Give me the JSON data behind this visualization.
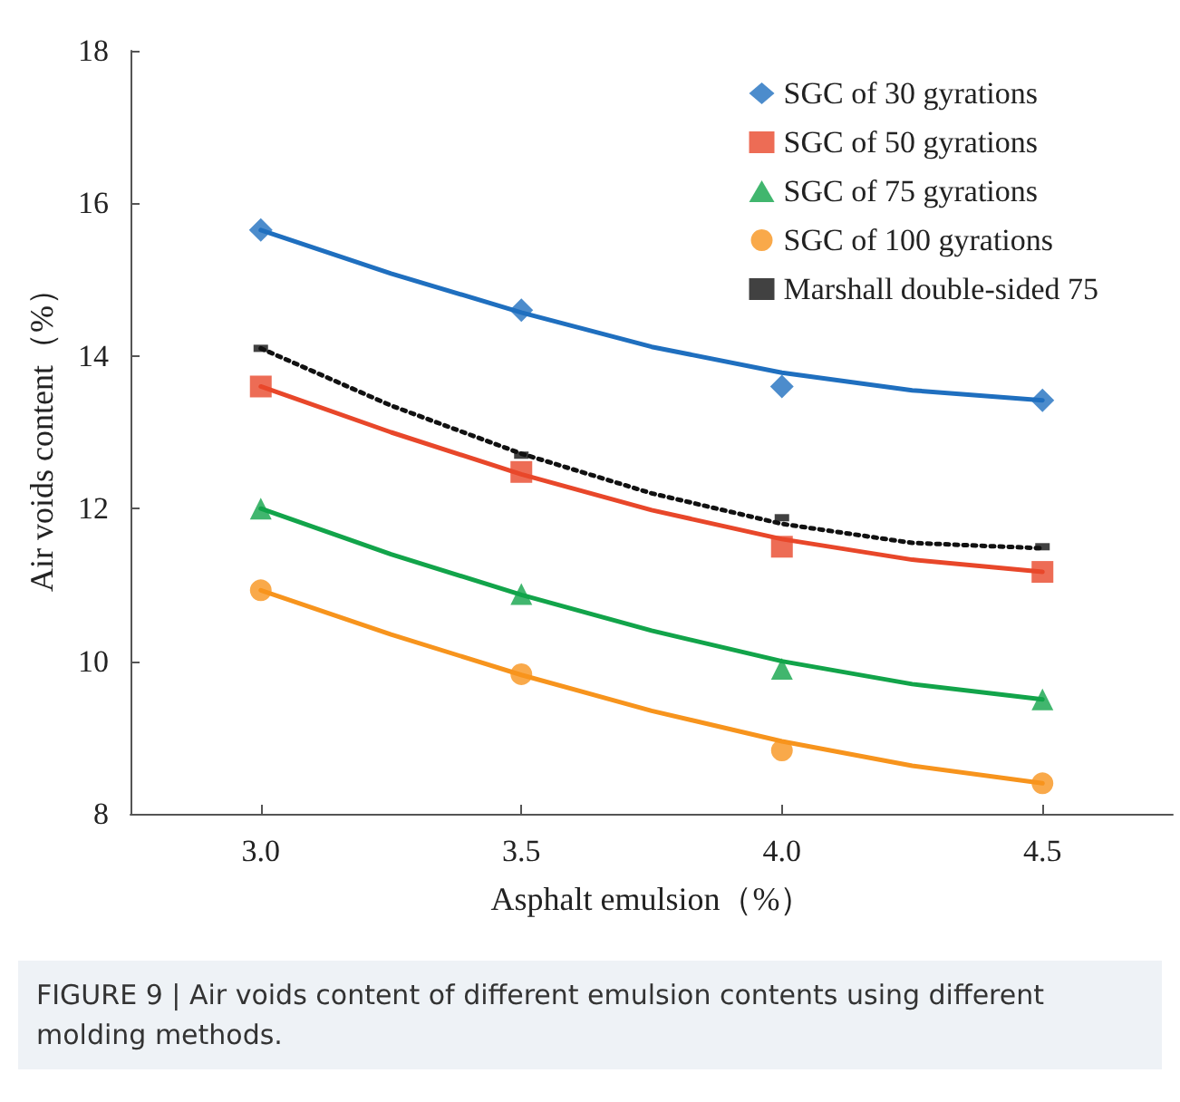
{
  "chart_data": {
    "type": "scatter",
    "xlabel": "Asphalt emulsion（%）",
    "ylabel": "Air voids content（%）",
    "x": [
      3.0,
      3.5,
      4.0,
      4.5
    ],
    "xlim": [
      2.75,
      4.75
    ],
    "xticks": [
      {
        "value": 3,
        "label": "3.0"
      },
      {
        "value": 3.5,
        "label": "3.5"
      },
      {
        "value": 4,
        "label": "4.0"
      },
      {
        "value": 4.5,
        "label": "4.5"
      }
    ],
    "ylim": [
      8,
      18
    ],
    "yticks": [
      8,
      10,
      12,
      14,
      16,
      18
    ],
    "grid": false,
    "legend": "top right",
    "series": [
      {
        "name": "SGC of 30 gyrations",
        "color": "#1f6fbf",
        "marker": "diamond",
        "values": [
          15.65,
          14.6,
          13.6,
          13.42
        ]
      },
      {
        "name": "SGC of 50 gyrations",
        "color": "#e8472a",
        "marker": "square",
        "values": [
          13.6,
          12.48,
          11.5,
          11.17
        ]
      },
      {
        "name": "SGC of 75 gyrations",
        "color": "#12a44a",
        "marker": "triangle",
        "values": [
          12.0,
          10.88,
          9.9,
          9.5
        ]
      },
      {
        "name": "SGC of 100 gyrations",
        "color": "#f7941d",
        "marker": "circle",
        "values": [
          10.93,
          9.83,
          8.83,
          8.4
        ]
      },
      {
        "name": "Marshall double-sided 75",
        "color": "#111111",
        "marker": "square",
        "values": [
          14.1,
          12.7,
          11.88,
          11.5
        ]
      },
      {
        "type": "line",
        "color": "#1f6fbf",
        "marker": "none",
        "line_style": "solid",
        "x": [
          3.0,
          3.25,
          3.5,
          3.75,
          4.0,
          4.25,
          4.5
        ],
        "values": [
          15.65,
          15.08,
          14.57,
          14.12,
          13.78,
          13.55,
          13.42
        ]
      },
      {
        "type": "line",
        "color": "#e8472a",
        "marker": "none",
        "line_style": "solid",
        "x": [
          3.0,
          3.25,
          3.5,
          3.75,
          4.0,
          4.25,
          4.5
        ],
        "values": [
          13.6,
          13.0,
          12.45,
          11.98,
          11.6,
          11.33,
          11.17
        ]
      },
      {
        "type": "line",
        "color": "#12a44a",
        "marker": "none",
        "line_style": "solid",
        "x": [
          3.0,
          3.25,
          3.5,
          3.75,
          4.0,
          4.25,
          4.5
        ],
        "values": [
          12.0,
          11.4,
          10.87,
          10.4,
          10.0,
          9.7,
          9.5
        ]
      },
      {
        "type": "line",
        "color": "#f7941d",
        "marker": "none",
        "line_style": "solid",
        "x": [
          3.0,
          3.25,
          3.5,
          3.75,
          4.0,
          4.25,
          4.5
        ],
        "values": [
          10.93,
          10.35,
          9.82,
          9.35,
          8.95,
          8.63,
          8.4
        ]
      },
      {
        "type": "line",
        "color": "#111111",
        "marker": "none",
        "line_style": "dotted",
        "x": [
          3.0,
          3.25,
          3.5,
          3.75,
          4.0,
          4.25,
          4.5
        ],
        "values": [
          14.1,
          13.35,
          12.72,
          12.2,
          11.8,
          11.55,
          11.48
        ]
      }
    ],
    "annotations": [
      "FIGURE 9 | Air voids content of different emulsion contents using different molding methods."
    ]
  }
}
